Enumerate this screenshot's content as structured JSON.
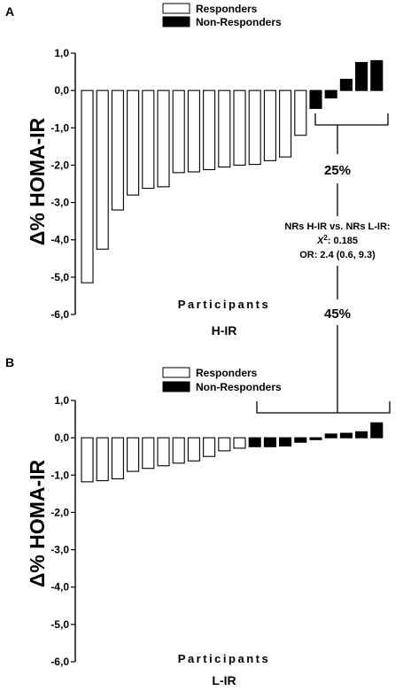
{
  "chart_data": [
    {
      "type": "bar",
      "panel_label": "A",
      "ylabel": "Δ% HOMA-IR",
      "xlabel": "Participants",
      "group_label": "H-IR",
      "ylim": [
        -6,
        1
      ],
      "yticks": [
        "1,0",
        "0,0",
        "-1,0",
        "-2,0",
        "-3,0",
        "-4,0",
        "-5,0",
        "-6,0"
      ],
      "grid": false,
      "legend_position": "top-center",
      "series": [
        {
          "name": "Responders",
          "color": "#ffffff",
          "values": [
            -5.15,
            -4.25,
            -3.2,
            -2.8,
            -2.62,
            -2.58,
            -2.2,
            -2.18,
            -2.12,
            -2.05,
            -2.0,
            -1.98,
            -1.88,
            -1.78,
            -1.2
          ]
        },
        {
          "name": "Non-Responders",
          "color": "#000000",
          "values": [
            -0.48,
            -0.2,
            0.3,
            0.75,
            0.8
          ]
        }
      ],
      "bracket_percent": "25%"
    },
    {
      "type": "bar",
      "panel_label": "B",
      "ylabel": "Δ% HOMA-IR",
      "xlabel": "Participants",
      "group_label": "L-IR",
      "ylim": [
        -6,
        1
      ],
      "yticks": [
        "1,0",
        "0,0",
        "-1,0",
        "-2,0",
        "-3,0",
        "-4,0",
        "-5,0",
        "-6,0"
      ],
      "grid": false,
      "legend_position": "top-left",
      "series": [
        {
          "name": "Responders",
          "color": "#ffffff",
          "values": [
            -1.18,
            -1.15,
            -1.1,
            -0.9,
            -0.82,
            -0.75,
            -0.68,
            -0.62,
            -0.5,
            -0.35,
            -0.28
          ]
        },
        {
          "name": "Non-Responders",
          "color": "#000000",
          "values": [
            -0.24,
            -0.24,
            -0.22,
            -0.12,
            -0.05,
            0.1,
            0.12,
            0.16,
            0.4
          ]
        }
      ],
      "bracket_percent": "45%"
    }
  ],
  "comparison": {
    "line1": "NRs H-IR vs. NRs L-IR:",
    "chi_symbol": "X",
    "chi_sup": "2",
    "chi_value": ": 0.185",
    "or_line": "OR:  2.4 (0.6, 9.3)"
  }
}
